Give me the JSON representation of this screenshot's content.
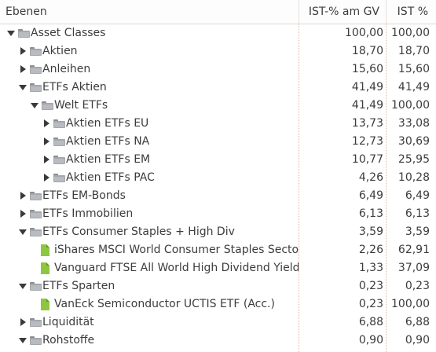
{
  "header": {
    "col_name": "Ebenen",
    "col_gv": "IST-% am GV",
    "col_ist": "IST %"
  },
  "rows": [
    {
      "label": "Asset Classes",
      "gv": "100,00",
      "ist": "100,00",
      "depth": 0,
      "expander": "down",
      "icon": "folder"
    },
    {
      "label": "Aktien",
      "gv": "18,70",
      "ist": "18,70",
      "depth": 1,
      "expander": "right",
      "icon": "folder"
    },
    {
      "label": "Anleihen",
      "gv": "15,60",
      "ist": "15,60",
      "depth": 1,
      "expander": "right",
      "icon": "folder"
    },
    {
      "label": "ETFs Aktien",
      "gv": "41,49",
      "ist": "41,49",
      "depth": 1,
      "expander": "down",
      "icon": "folder"
    },
    {
      "label": "Welt ETFs",
      "gv": "41,49",
      "ist": "100,00",
      "depth": 2,
      "expander": "down",
      "icon": "folder"
    },
    {
      "label": "Aktien ETFs EU",
      "gv": "13,73",
      "ist": "33,08",
      "depth": 3,
      "expander": "right",
      "icon": "folder"
    },
    {
      "label": "Aktien ETFs NA",
      "gv": "12,73",
      "ist": "30,69",
      "depth": 3,
      "expander": "right",
      "icon": "folder"
    },
    {
      "label": "Aktien ETFs EM",
      "gv": "10,77",
      "ist": "25,95",
      "depth": 3,
      "expander": "right",
      "icon": "folder"
    },
    {
      "label": "Aktien ETFs PAC",
      "gv": "4,26",
      "ist": "10,28",
      "depth": 3,
      "expander": "right",
      "icon": "folder"
    },
    {
      "label": "ETFs EM-Bonds",
      "gv": "6,49",
      "ist": "6,49",
      "depth": 1,
      "expander": "right",
      "icon": "folder"
    },
    {
      "label": "ETFs Immobilien",
      "gv": "6,13",
      "ist": "6,13",
      "depth": 1,
      "expander": "right",
      "icon": "folder"
    },
    {
      "label": "ETFs Consumer Staples + High Div",
      "gv": "3,59",
      "ist": "3,59",
      "depth": 1,
      "expander": "down",
      "icon": "folder"
    },
    {
      "label": "iShares MSCI World Consumer Staples Sector UCITS ETF",
      "gv": "2,26",
      "ist": "62,91",
      "depth": 2,
      "expander": "none",
      "icon": "doc"
    },
    {
      "label": "Vanguard FTSE All World High Dividend Yield",
      "gv": "1,33",
      "ist": "37,09",
      "depth": 2,
      "expander": "none",
      "icon": "doc"
    },
    {
      "label": "ETFs Sparten",
      "gv": "0,23",
      "ist": "0,23",
      "depth": 1,
      "expander": "down",
      "icon": "folder"
    },
    {
      "label": "VanEck Semiconductor UCTIS ETF (Acc.)",
      "gv": "0,23",
      "ist": "100,00",
      "depth": 2,
      "expander": "none",
      "icon": "doc"
    },
    {
      "label": "Liquidität",
      "gv": "6,88",
      "ist": "6,88",
      "depth": 1,
      "expander": "right",
      "icon": "folder"
    },
    {
      "label": "Rohstoffe",
      "gv": "0,90",
      "ist": "0,90",
      "depth": 1,
      "expander": "down",
      "icon": "folder"
    }
  ],
  "icons": {
    "folder": "folder-icon",
    "doc": "security-icon",
    "down": "chevron-down-icon",
    "right": "chevron-right-icon"
  },
  "colors": {
    "folder": "#a4a8ac",
    "security": "#8dc63f",
    "column_guide": "#e9b79a"
  }
}
